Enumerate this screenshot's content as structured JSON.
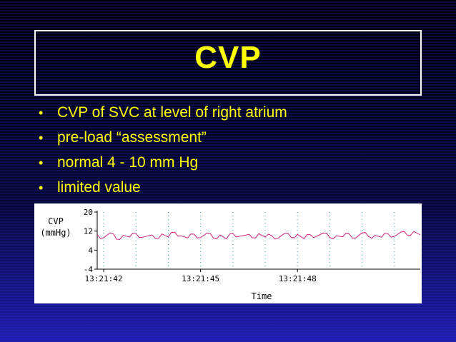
{
  "slide": {
    "title": "CVP",
    "bullets": [
      "CVP of SVC at level of right atrium",
      "pre-load “assessment”",
      "normal 4 - 10 mm Hg",
      "limited value"
    ]
  },
  "colors": {
    "title": "#ffff00",
    "bullet_text": "#ffff00",
    "trace": "#d0207a",
    "gridline": "#3aa0c8"
  },
  "chart_data": {
    "type": "line",
    "title": "",
    "ylabel_line1": "CVP",
    "ylabel_line2": "(mmHg)",
    "xlabel": "Time",
    "ylim": [
      -4,
      20
    ],
    "yticks": [
      20,
      12,
      4,
      -4
    ],
    "xlim": [
      0,
      10
    ],
    "xtick_labels": [
      {
        "x": 0.2,
        "label": "13:21:42"
      },
      {
        "x": 3.2,
        "label": "13:21:45"
      },
      {
        "x": 6.2,
        "label": "13:21:48"
      }
    ],
    "gridlines_x": [
      0.2,
      1.2,
      2.2,
      3.2,
      4.2,
      5.2,
      6.2,
      7.2,
      8.2,
      9.2
    ],
    "series": [
      {
        "name": "CVP",
        "x": [
          0.0,
          0.2,
          0.4,
          0.6,
          0.8,
          1.0,
          1.2,
          1.4,
          1.6,
          1.8,
          2.0,
          2.2,
          2.4,
          2.6,
          2.8,
          3.0,
          3.2,
          3.4,
          3.6,
          3.8,
          4.0,
          4.2,
          4.4,
          4.6,
          4.8,
          5.0,
          5.2,
          5.4,
          5.6,
          5.8,
          6.0,
          6.2,
          6.4,
          6.6,
          6.8,
          7.0,
          7.2,
          7.4,
          7.6,
          7.8,
          8.0,
          8.2,
          8.4,
          8.6,
          8.8,
          9.0,
          9.2,
          9.4,
          9.6,
          9.8,
          10.0
        ],
        "values": [
          10.5,
          9.2,
          11.3,
          8.6,
          10.2,
          9.5,
          11.0,
          9.4,
          10.1,
          8.9,
          10.8,
          9.6,
          11.5,
          10.0,
          9.1,
          10.7,
          9.3,
          11.2,
          9.0,
          10.4,
          8.7,
          11.0,
          9.8,
          10.3,
          9.2,
          10.9,
          9.5,
          10.1,
          9.0,
          11.1,
          9.4,
          10.6,
          8.8,
          10.5,
          9.9,
          11.2,
          9.3,
          10.0,
          9.6,
          10.8,
          9.1,
          11.3,
          9.7,
          10.2,
          9.4,
          10.9,
          9.8,
          11.6,
          10.3,
          11.9,
          10.4
        ]
      }
    ]
  }
}
